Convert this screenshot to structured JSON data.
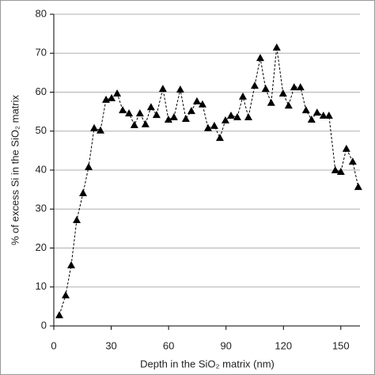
{
  "chart_data": {
    "type": "line",
    "x_label": "Depth in the SiO₂ matrix (nm)",
    "y_label": "% of excess Si in the SiO₂ matrix",
    "xlim": [
      0,
      160
    ],
    "xticks": [
      0,
      30,
      60,
      90,
      120,
      150
    ],
    "ylim": [
      0,
      80
    ],
    "yticks": [
      0,
      10,
      20,
      30,
      40,
      50,
      60,
      70,
      80
    ],
    "grid": true,
    "x": [
      2.9,
      6.2,
      9.1,
      12,
      15.3,
      18.2,
      21.1,
      24.4,
      27.3,
      30.2,
      33.1,
      36,
      39.3,
      42.1,
      45,
      47.9,
      50.8,
      53.7,
      57,
      59.9,
      62.8,
      66.1,
      69,
      71.9,
      74.8,
      77.7,
      80.6,
      83.9,
      86.8,
      89.7,
      92.6,
      95.9,
      98.8,
      101.7,
      105,
      107.9,
      110.7,
      113.6,
      116.5,
      119.8,
      122.7,
      125.6,
      128.9,
      131.8,
      134.7,
      137.6,
      140.9,
      143.8,
      147.1,
      150,
      152.9,
      156.2,
      159.1
    ],
    "series": [
      {
        "color": "#000000",
        "values": [
          2.8,
          7.9,
          15.6,
          27.2,
          34.1,
          40.8,
          50.8,
          50.2,
          58.1,
          58.5,
          59.7,
          55.4,
          54.6,
          51.6,
          54.6,
          51.8,
          56.2,
          54.2,
          60.9,
          53,
          53.6,
          60.7,
          53.2,
          55.2,
          57.7,
          56.9,
          50.8,
          51.4,
          48.3,
          52.8,
          54,
          53.6,
          58.9,
          53.6,
          61.7,
          68.8,
          60.9,
          57.3,
          71.5,
          59.7,
          56.6,
          61.3,
          61.3,
          55.4,
          53,
          54.8,
          54,
          54,
          40,
          39.6,
          45.5,
          42.2,
          35.7
        ]
      }
    ]
  }
}
